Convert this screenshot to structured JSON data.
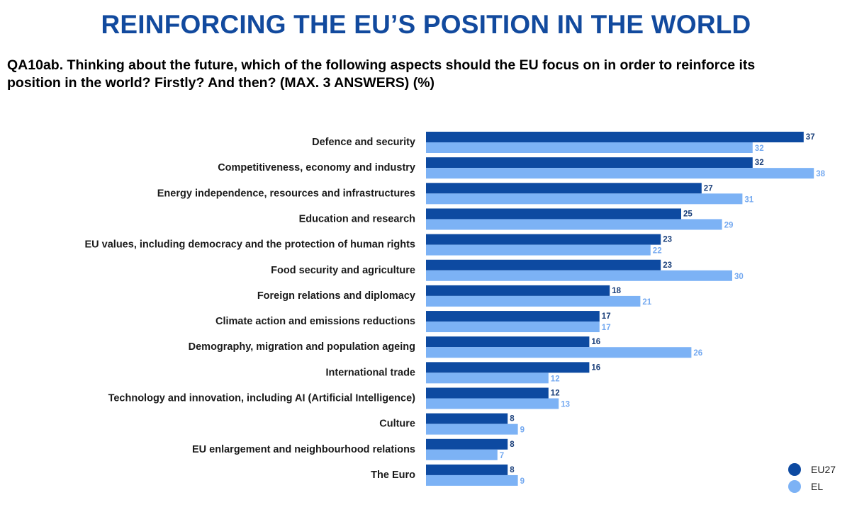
{
  "header": {
    "title": "REINFORCING THE EU’S POSITION IN THE WORLD",
    "question": "QA10ab. Thinking about the future, which of the following aspects should the EU focus on in order to reinforce its position in the world? Firstly? And then? (MAX. 3 ANSWERS) (%)"
  },
  "colors": {
    "eu27": "#0d4aa1",
    "el": "#7cb2f5"
  },
  "chart_data": {
    "type": "bar",
    "orientation": "horizontal",
    "categories": [
      "Defence and security",
      "Competitiveness, economy and industry",
      "Energy independence, resources and infrastructures",
      "Education and research",
      "EU values, including democracy and the protection of human rights",
      "Food security and agriculture",
      "Foreign relations and diplomacy",
      "Climate action and emissions reductions",
      "Demography, migration and population ageing",
      "International trade",
      "Technology and innovation, including AI (Artificial Intelligence)",
      "Culture",
      "EU enlargement and neighbourhood relations",
      "The Euro"
    ],
    "series": [
      {
        "name": "EU27",
        "values": [
          37,
          32,
          27,
          25,
          23,
          23,
          18,
          17,
          16,
          16,
          12,
          8,
          8,
          8
        ]
      },
      {
        "name": "EL",
        "values": [
          32,
          38,
          31,
          29,
          22,
          30,
          21,
          17,
          26,
          12,
          13,
          9,
          7,
          9
        ]
      }
    ],
    "legend_position": "bottom-right",
    "grid": false,
    "xlim": [
      0,
      40
    ]
  }
}
